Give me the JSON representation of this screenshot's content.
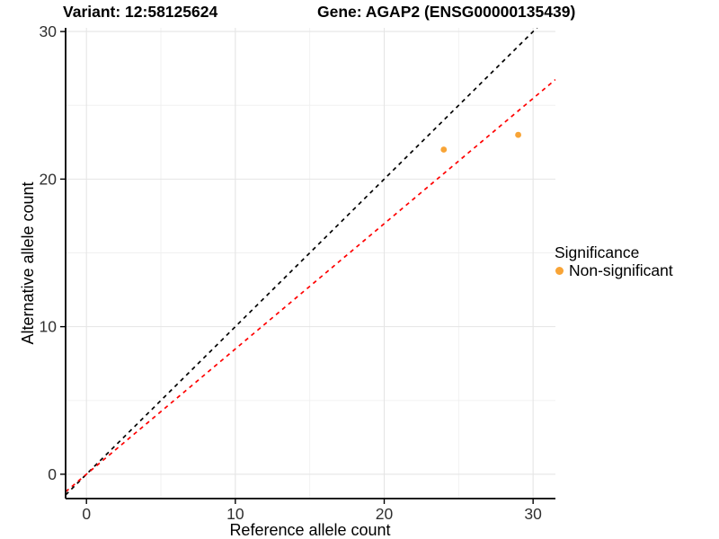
{
  "header": {
    "variant_title": "Variant: 12:58125624",
    "gene_title": "Gene: AGAP2 (ENSG00000135439)"
  },
  "chart_data": {
    "type": "scatter",
    "xlabel": "Reference allele count",
    "ylabel": "Alternative allele count",
    "xlim": [
      -1.4,
      31.5
    ],
    "ylim": [
      -1.65,
      30.25
    ],
    "major_ticks": [
      0,
      10,
      20,
      30
    ],
    "minor_ticks": [
      5,
      15,
      25
    ],
    "grid": "on",
    "points": [
      {
        "x": 24,
        "y": 22,
        "series": "Non-significant"
      },
      {
        "x": 29,
        "y": 23,
        "series": "Non-significant"
      }
    ],
    "lines": [
      {
        "name": "identity-line",
        "slope": 1,
        "intercept": 0,
        "color": "#000000",
        "style": "dashed"
      },
      {
        "name": "fit-line",
        "slope": 0.849,
        "intercept": 0,
        "color": "#ff0000",
        "style": "dashed"
      }
    ],
    "legend": {
      "position": "right",
      "title": "Significance",
      "items": [
        {
          "label": "Non-significant",
          "color": "#F8A436"
        }
      ]
    },
    "colors": {
      "point": "#F8A436",
      "grid_major": "#E5E5E5",
      "grid_minor": "#F0F0F0",
      "axis": "#000000",
      "tick_label": "#303030"
    }
  }
}
